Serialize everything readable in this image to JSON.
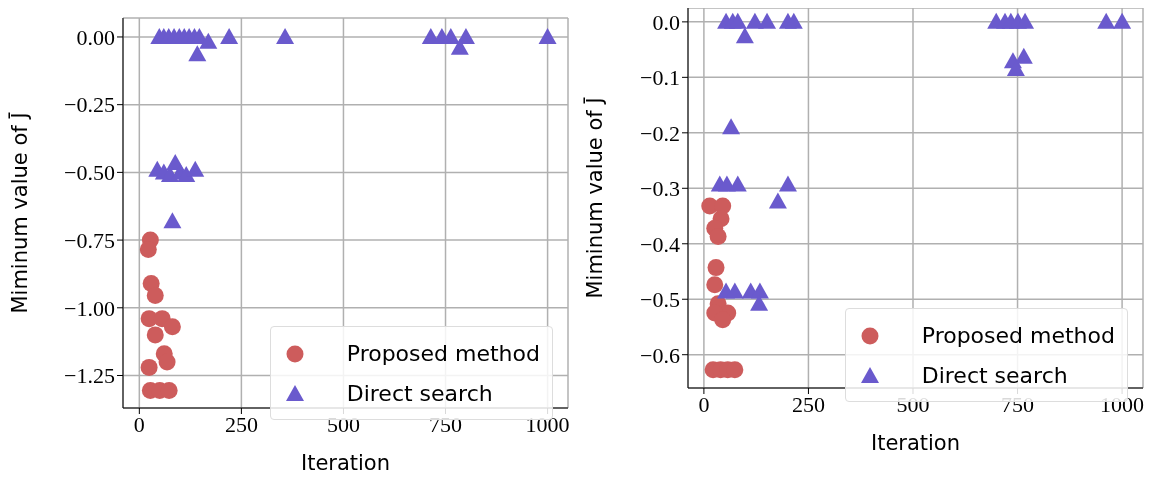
{
  "chart_data": [
    {
      "type": "scatter",
      "xlabel": "Iteration",
      "ylabel": "Miminum value of J̄",
      "xlim": [
        -40,
        1050
      ],
      "xticks": [
        0,
        250,
        500,
        750,
        1000
      ],
      "ylim": [
        -1.37,
        0.07
      ],
      "yticks": [
        {
          "value": 0,
          "label": "0.00"
        },
        {
          "value": -0.25,
          "label": "−0.25"
        },
        {
          "value": -0.5,
          "label": "−0.50"
        },
        {
          "value": -0.75,
          "label": "−0.75"
        },
        {
          "value": -1,
          "label": "−1.00"
        },
        {
          "value": -1.25,
          "label": "−1.25"
        }
      ],
      "grid": true,
      "legend": "bottom right",
      "series": [
        {
          "name": "Proposed method",
          "color": "#cd5c5c",
          "marker": "circle",
          "x": [
            27,
            22,
            29,
            39,
            24,
            56,
            81,
            39,
            61,
            68,
            24,
            27,
            50,
            73
          ],
          "values": [
            -0.75,
            -0.785,
            -0.91,
            -0.955,
            -1.04,
            -1.04,
            -1.07,
            -1.1,
            -1.17,
            -1.2,
            -1.22,
            -1.305,
            -1.305,
            -1.305
          ]
        },
        {
          "name": "Direct search",
          "color": "#6a5acd",
          "marker": "triangle",
          "x": [
            49,
            60,
            72,
            85,
            98,
            110,
            122,
            135,
            147,
            169,
            220,
            357,
            142,
            714,
            741,
            763,
            800,
            785,
            1000,
            44,
            60,
            75,
            88,
            100,
            115,
            137,
            81
          ],
          "values": [
            0,
            0,
            0,
            0,
            0,
            0,
            0,
            0,
            0,
            -0.018,
            0,
            0,
            -0.064,
            0,
            0,
            0,
            0,
            -0.04,
            0,
            -0.49,
            -0.5,
            -0.51,
            -0.465,
            -0.5,
            -0.51,
            -0.49,
            -0.68
          ]
        }
      ]
    },
    {
      "type": "scatter",
      "xlabel": "Iteration",
      "ylabel": "Miminum value of J̄",
      "xlim": [
        -38,
        1050
      ],
      "xticks": [
        0,
        250,
        500,
        750,
        1000
      ],
      "ylim": [
        -0.66,
        0.025
      ],
      "yticks": [
        {
          "value": 0,
          "label": "0.0"
        },
        {
          "value": -0.1,
          "label": "−0.1"
        },
        {
          "value": -0.2,
          "label": "−0.2"
        },
        {
          "value": -0.3,
          "label": "−0.3"
        },
        {
          "value": -0.4,
          "label": "−0.4"
        },
        {
          "value": -0.5,
          "label": "−0.5"
        },
        {
          "value": -0.6,
          "label": "−0.6"
        }
      ],
      "grid": true,
      "legend": "bottom right",
      "series": [
        {
          "name": "Proposed method",
          "color": "#cd5c5c",
          "marker": "circle",
          "x": [
            14,
            45,
            41,
            26,
            34,
            29,
            26,
            34,
            57,
            26,
            45,
            22,
            40,
            57,
            74
          ],
          "values": [
            -0.332,
            -0.332,
            -0.355,
            -0.372,
            -0.387,
            -0.443,
            -0.474,
            -0.508,
            -0.525,
            -0.525,
            -0.537,
            -0.627,
            -0.627,
            -0.627,
            -0.627
          ]
        },
        {
          "name": "Direct search",
          "color": "#6a5acd",
          "marker": "triangle",
          "x": [
            53,
            69,
            81,
            122,
            151,
            201,
            215,
            98,
            699,
            720,
            734,
            751,
            768,
            962,
            1000,
            739,
            765,
            746,
            65,
            38,
            55,
            81,
            201,
            177,
            53,
            74,
            112,
            134,
            132
          ],
          "values": [
            0,
            0,
            0,
            0,
            0,
            0,
            0,
            -0.026,
            0,
            0,
            0,
            0,
            0,
            0,
            0,
            -0.071,
            -0.063,
            -0.085,
            -0.19,
            -0.293,
            -0.293,
            -0.293,
            -0.293,
            -0.324,
            -0.486,
            -0.486,
            -0.486,
            -0.486,
            -0.508
          ]
        }
      ]
    }
  ]
}
